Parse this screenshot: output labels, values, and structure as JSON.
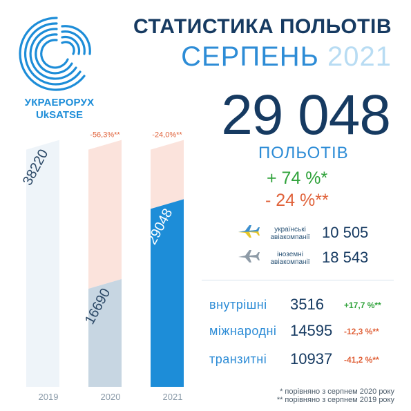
{
  "brand": {
    "name_ua": "УКРАЕРОРУХ",
    "name_en": "UkSATSE"
  },
  "title": {
    "line1": "СТАТИСТИКА ПОЛЬОТІВ",
    "month": "СЕРПЕНЬ",
    "year": "2021"
  },
  "total": {
    "value": "29 048",
    "unit": "ПОЛЬОТІВ",
    "change_2020": "+ 74 %*",
    "change_2019": "- 24 %**"
  },
  "chart_data": {
    "type": "bar",
    "categories": [
      "2019",
      "2020",
      "2021"
    ],
    "values": [
      38220,
      16690,
      29048
    ],
    "value_labels": [
      "38220",
      "16690",
      "29048"
    ],
    "change_labels": [
      "",
      "-56,3%**",
      "-24,0%**"
    ],
    "colors": {
      "2019": "#eef4f9",
      "2020": "#c7d6e2",
      "2021": "#1d8dd8",
      "gap": "#fbe3dc"
    }
  },
  "airlines": [
    {
      "label_line1": "українські",
      "label_line2": "авіакомпанії",
      "value": "10 505",
      "icon": "plane-ua-icon"
    },
    {
      "label_line1": "іноземні",
      "label_line2": "авіакомпанії",
      "value": "18 543",
      "icon": "plane-foreign-icon"
    }
  ],
  "categories": [
    {
      "label": "внутрішні",
      "value": "3516",
      "pct": "+17,7 %**",
      "trend": "up"
    },
    {
      "label": "міжнародні",
      "value": "14595",
      "pct": "-12,3 %**",
      "trend": "down"
    },
    {
      "label": "транзитні",
      "value": "10937",
      "pct": "-41,2 %**",
      "trend": "down"
    }
  ],
  "footnotes": {
    "f1": "* порівняно з серпнем 2020 року",
    "f2": "** порівняно з серпнем 2019 року"
  }
}
